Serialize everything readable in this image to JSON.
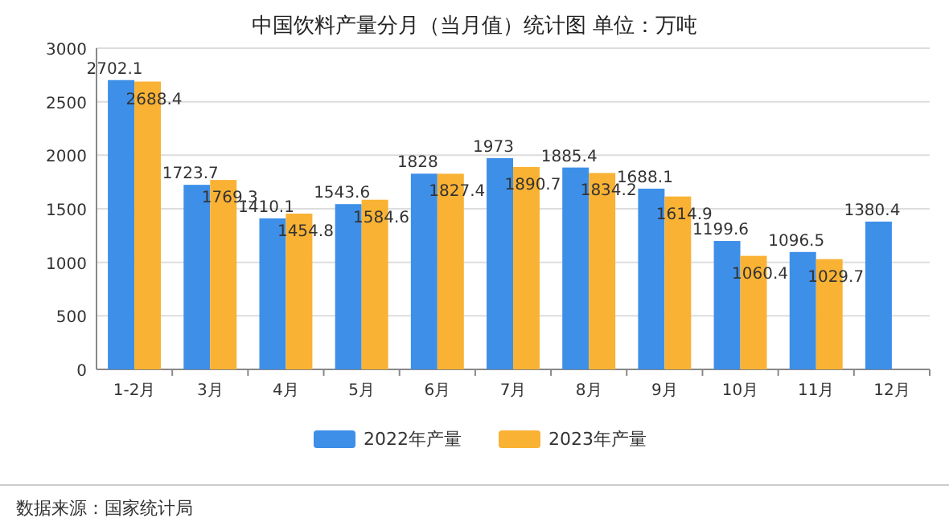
{
  "chart_data": {
    "type": "bar",
    "title": "中国饮料产量分月（当月值）统计图 单位：万吨",
    "categories": [
      "1-2月",
      "3月",
      "4月",
      "5月",
      "6月",
      "7月",
      "8月",
      "9月",
      "10月",
      "11月",
      "12月"
    ],
    "series": [
      {
        "name": "2022年产量",
        "color": "#3d8fe8",
        "values": [
          2702.1,
          1723.7,
          1410.1,
          1543.6,
          1828,
          1973,
          1885.4,
          1688.1,
          1199.6,
          1096.5,
          1380.4
        ]
      },
      {
        "name": "2023年产量",
        "color": "#f9b233",
        "values": [
          2688.4,
          1769.3,
          1454.8,
          1584.6,
          1827.4,
          1890.7,
          1834.2,
          1614.9,
          1060.4,
          1029.7,
          null
        ]
      }
    ],
    "ylim": [
      0,
      3000
    ],
    "yticks": [
      0,
      500,
      1000,
      1500,
      2000,
      2500,
      3000
    ],
    "grid": "y",
    "legend": "bottom",
    "data_labels": true,
    "annotations": [
      "数据来源：国家统计局"
    ]
  }
}
